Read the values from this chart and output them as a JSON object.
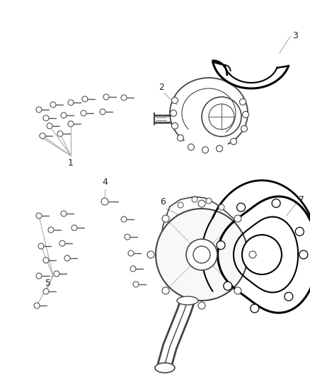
{
  "background_color": "#ffffff",
  "figsize": [
    4.38,
    5.33
  ],
  "dpi": 100,
  "line_color": "#aaaaaa",
  "part_color": "#444444",
  "text_color": "#222222"
}
